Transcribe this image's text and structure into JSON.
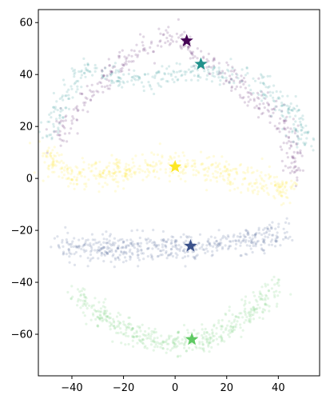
{
  "chart_data": {
    "type": "scatter",
    "title": "",
    "xlabel": "",
    "ylabel": "",
    "xlim": [
      -53,
      56
    ],
    "ylim": [
      -76,
      65
    ],
    "grid": false,
    "legend": "none",
    "xticks": [
      -40,
      -20,
      0,
      20,
      40
    ],
    "yticks": [
      -60,
      -40,
      -20,
      0,
      20,
      40,
      60
    ],
    "xtick_labels": [
      "−40",
      "−20",
      "0",
      "20",
      "40"
    ],
    "ytick_labels": [
      "−60",
      "−40",
      "−20",
      "0",
      "20",
      "40",
      "60"
    ],
    "clusters": [
      {
        "color": "#440154",
        "description_points": "purple arc",
        "path": [
          [
            -47,
            15
          ],
          [
            -38,
            27
          ],
          [
            -28,
            38
          ],
          [
            -15,
            49
          ],
          [
            -2,
            55
          ],
          [
            10,
            48
          ],
          [
            22,
            38
          ],
          [
            32,
            30
          ],
          [
            40,
            24
          ],
          [
            46,
            10
          ],
          [
            47,
            0
          ]
        ],
        "spread": 2.2,
        "count": 380,
        "centroid": [
          4.5,
          53
        ]
      },
      {
        "color": "#21918c",
        "path": [
          [
            -49,
            15
          ],
          [
            -44,
            30
          ],
          [
            -36,
            42
          ],
          [
            -28,
            40
          ],
          [
            -18,
            38
          ],
          [
            -5,
            39
          ],
          [
            8,
            41
          ],
          [
            18,
            41
          ],
          [
            30,
            40
          ],
          [
            40,
            30
          ],
          [
            47,
            22
          ],
          [
            50,
            13
          ]
        ],
        "spread": 2.2,
        "count": 380,
        "centroid": [
          10,
          44
        ]
      },
      {
        "color": "#fde725",
        "path": [
          [
            -50,
            10
          ],
          [
            -42,
            1
          ],
          [
            -30,
            1
          ],
          [
            -15,
            3
          ],
          [
            0,
            5
          ],
          [
            15,
            3
          ],
          [
            28,
            0
          ],
          [
            40,
            -4
          ],
          [
            46,
            -4
          ]
        ],
        "spread": 2.6,
        "count": 520,
        "centroid": [
          0,
          4.5
        ]
      },
      {
        "color": "#3b528b",
        "path": [
          [
            -44,
            -26
          ],
          [
            -30,
            -27
          ],
          [
            -15,
            -27
          ],
          [
            0,
            -26
          ],
          [
            15,
            -26
          ],
          [
            30,
            -24
          ],
          [
            42,
            -19
          ]
        ],
        "spread": 2.6,
        "count": 520,
        "centroid": [
          6,
          -26
        ]
      },
      {
        "color": "#5ec962",
        "path": [
          [
            -38,
            -45
          ],
          [
            -30,
            -52
          ],
          [
            -18,
            -59
          ],
          [
            -5,
            -63
          ],
          [
            8,
            -63
          ],
          [
            22,
            -57
          ],
          [
            33,
            -49
          ],
          [
            39,
            -40
          ]
        ],
        "spread": 2.4,
        "count": 480,
        "centroid": [
          6.5,
          -62
        ]
      }
    ]
  }
}
